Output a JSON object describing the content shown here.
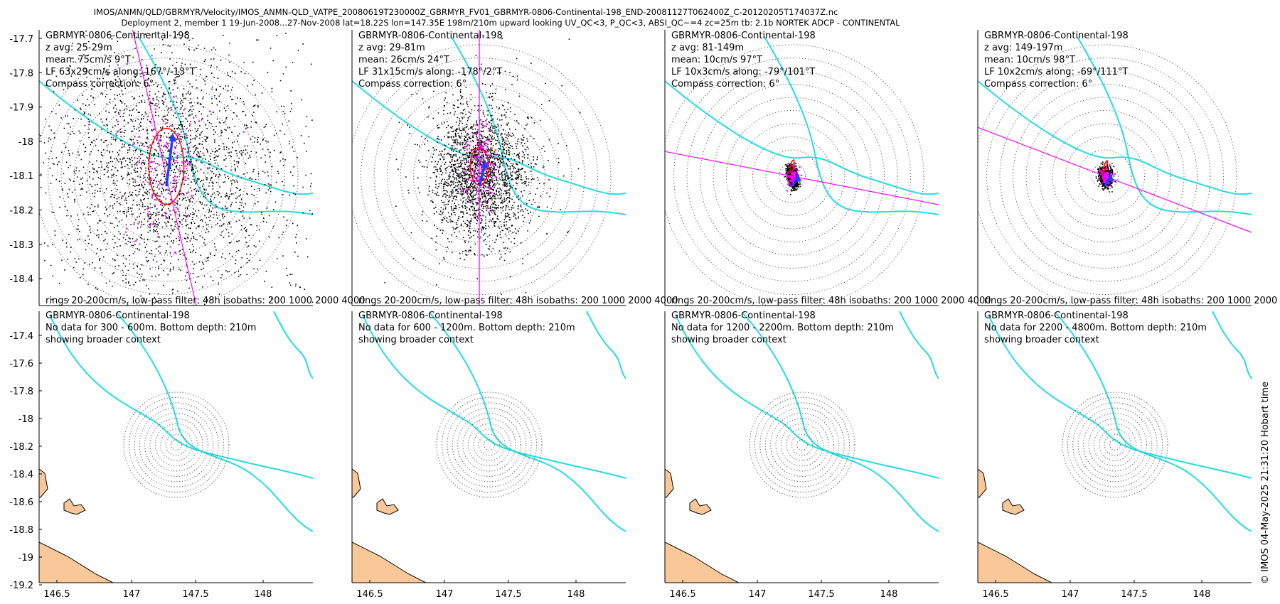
{
  "figure": {
    "title_line1": "IMOS/ANMN/QLD/GBRMYR/Velocity/IMOS_ANMN-QLD_VATPE_20080619T230000Z_GBRMYR_FV01_GBRMYR-0806-Continental-198_END-20081127T062400Z_C-20120205T174037Z.nc",
    "title_line2": "Deployment 2, member 1 19-Jun-2008...27-Nov-2008 lat=18.22S lon=147.35E 198m/210m upward looking UV_QC<3, P_QC<3, ABSI_QC~=4 zc=25m tb: 2.1b NORTEK ADCP - CONTINENTAL",
    "credit": "© IMOS 04-May-2025 21:31:20 Hobart time"
  },
  "colors": {
    "scatter": "#000000",
    "vector": "#1f3fff",
    "ellipse": "#ff0000",
    "axis_line": "#ff00ff",
    "isobath": "#22dde0",
    "land": "#f8c898",
    "rings": "#555555"
  },
  "chart_data": [
    {
      "type": "scatter",
      "panel": 1,
      "texts": [
        "GBRMYR-0806-Continental-198",
        "z avg: 25-29m",
        "mean: 75cm/s 9°T",
        "LF 63x29cm/s along: 167°/-13°T",
        "Compass correction: 6°"
      ],
      "footer": "rings 20-200cm/s, low-pass filter: 48h isobaths: 200 1000 2000 4000",
      "yticks": [
        "-17.7",
        "-17.8",
        "-17.9",
        "-18",
        "-18.1",
        "-18.2",
        "-18.3",
        "-18.4"
      ],
      "mean_speed_cms": 75,
      "mean_dir_degT": 9,
      "ellipse_major_cms": 63,
      "ellipse_minor_cms": 29,
      "along_dir_degT": 167,
      "scatter_spread": [
        0.9,
        1.0
      ],
      "point_count": 2600
    },
    {
      "type": "scatter",
      "panel": 2,
      "texts": [
        "GBRMYR-0806-Continental-198",
        "z avg: 29-81m",
        "mean: 26cm/s 24°T",
        "LF 31x15cm/s along: -178°/2°T",
        "Compass correction: 6°"
      ],
      "footer": "rings 20-200cm/s, low-pass filter: 48h isobaths: 200 1000 2000 4000",
      "mean_speed_cms": 26,
      "mean_dir_degT": 24,
      "ellipse_major_cms": 31,
      "ellipse_minor_cms": 15,
      "along_dir_degT": -178,
      "scatter_spread": [
        0.36,
        0.52
      ],
      "point_count": 2200
    },
    {
      "type": "scatter",
      "panel": 3,
      "texts": [
        "GBRMYR-0806-Continental-198",
        "z avg: 81-149m",
        "mean: 10cm/s 97°T",
        "LF 10x3cm/s along: -79°/101°T",
        "Compass correction: 6°"
      ],
      "footer": "rings 20-200cm/s, low-pass filter: 48h isobaths: 200 1000 2000 4000",
      "mean_speed_cms": 10,
      "mean_dir_degT": 97,
      "ellipse_major_cms": 10,
      "ellipse_minor_cms": 3,
      "along_dir_degT": -79,
      "scatter_spread": [
        0.15,
        0.1
      ],
      "point_count": 1100
    },
    {
      "type": "scatter",
      "panel": 4,
      "texts": [
        "GBRMYR-0806-Continental-198",
        "z avg: 149-197m",
        "mean: 10cm/s 98°T",
        "LF 10x2cm/s along: -69°/111°T",
        "Compass correction: 6°"
      ],
      "footer": "rings 20-200cm/s, low-pass filter: 48h isobaths: 200 1000 2000 4000",
      "mean_speed_cms": 10,
      "mean_dir_degT": 98,
      "ellipse_major_cms": 10,
      "ellipse_minor_cms": 2,
      "along_dir_degT": -69,
      "scatter_spread": [
        0.13,
        0.09
      ],
      "point_count": 900
    },
    {
      "type": "map",
      "panel": 5,
      "texts": [
        "GBRMYR-0806-Continental-198",
        "No data for 300 - 600m. Bottom depth: 210m",
        "showing broader context"
      ],
      "yticks": [
        "-17.4",
        "-17.6",
        "-17.8",
        "-18",
        "-18.2",
        "-18.4",
        "-18.6",
        "-18.8",
        "-19",
        "-19.2"
      ],
      "xticks": [
        "146.5",
        "147",
        "147.5",
        "148"
      ]
    },
    {
      "type": "map",
      "panel": 6,
      "texts": [
        "GBRMYR-0806-Continental-198",
        "No data for 600 - 1200m. Bottom depth: 210m",
        "showing broader context"
      ],
      "xticks": [
        "146.5",
        "147",
        "147.5",
        "148"
      ]
    },
    {
      "type": "map",
      "panel": 7,
      "texts": [
        "GBRMYR-0806-Continental-198",
        "No data for 1200 - 2200m. Bottom depth: 210m",
        "showing broader context"
      ],
      "xticks": [
        "146.5",
        "147",
        "147.5",
        "148"
      ]
    },
    {
      "type": "map",
      "panel": 8,
      "texts": [
        "GBRMYR-0806-Continental-198",
        "No data for 2200 - 4800m. Bottom depth: 210m",
        "showing broader context"
      ],
      "xticks": [
        "146.5",
        "147",
        "147.5",
        "148"
      ]
    }
  ]
}
